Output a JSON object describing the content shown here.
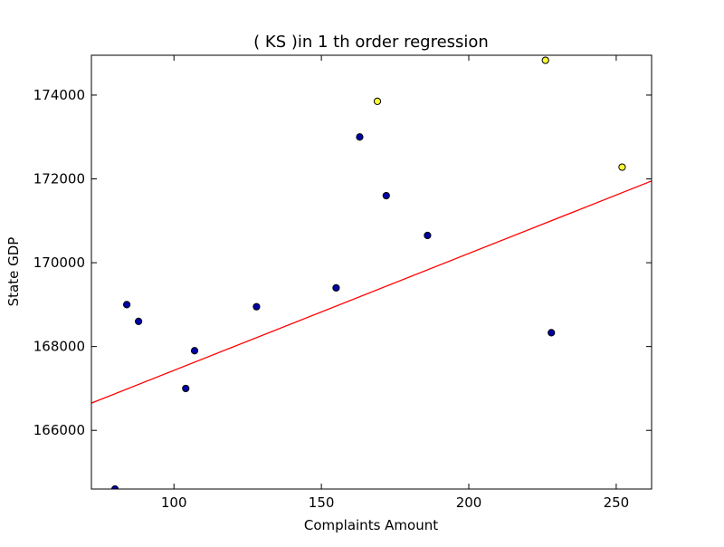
{
  "chart_data": {
    "type": "scatter",
    "title": "(  KS  )in 1 th order regression",
    "xlabel": "Complaints Amount",
    "ylabel": "State GDP",
    "xlim": [
      72,
      262
    ],
    "ylim": [
      164600,
      174950
    ],
    "xticks": [
      100,
      150,
      200,
      250
    ],
    "yticks": [
      166000,
      168000,
      170000,
      172000,
      174000
    ],
    "grid": false,
    "legend": "none",
    "series": [
      {
        "color": "#0000aa",
        "points": [
          {
            "x": 80,
            "y": 164600
          },
          {
            "x": 84,
            "y": 169000
          },
          {
            "x": 88,
            "y": 168600
          },
          {
            "x": 104,
            "y": 167000
          },
          {
            "x": 107,
            "y": 167900
          },
          {
            "x": 128,
            "y": 168950
          },
          {
            "x": 155,
            "y": 169400
          },
          {
            "x": 163,
            "y": 173000
          },
          {
            "x": 172,
            "y": 171600
          },
          {
            "x": 186,
            "y": 170650
          },
          {
            "x": 228,
            "y": 168330
          }
        ]
      },
      {
        "color": "#ffff33",
        "points": [
          {
            "x": 169,
            "y": 173850
          },
          {
            "x": 226,
            "y": 174830
          },
          {
            "x": 252,
            "y": 172280
          }
        ]
      }
    ],
    "regression_line": {
      "color": "#ff0000",
      "start": {
        "x": 72,
        "y": 166650
      },
      "end": {
        "x": 262,
        "y": 171950
      }
    }
  }
}
